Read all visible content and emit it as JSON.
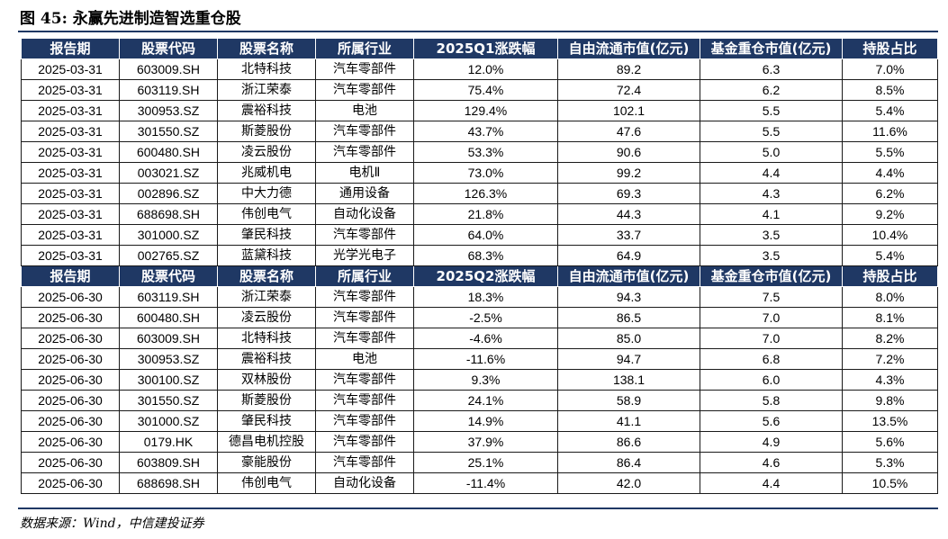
{
  "title": "图 45: 永赢先进制造智选重仓股",
  "source": "数据来源：Wind，中信建投证券",
  "sections": [
    {
      "headers": [
        "报告期",
        "股票代码",
        "股票名称",
        "所属行业",
        "2025Q1涨跌幅",
        "自由流通市值(亿元)",
        "基金重仓市值(亿元)",
        "持股占比"
      ],
      "rows": [
        [
          "2025-03-31",
          "603009.SH",
          "北特科技",
          "汽车零部件",
          "12.0%",
          "89.2",
          "6.3",
          "7.0%"
        ],
        [
          "2025-03-31",
          "603119.SH",
          "浙江荣泰",
          "汽车零部件",
          "75.4%",
          "72.4",
          "6.2",
          "8.5%"
        ],
        [
          "2025-03-31",
          "300953.SZ",
          "震裕科技",
          "电池",
          "129.4%",
          "102.1",
          "5.5",
          "5.4%"
        ],
        [
          "2025-03-31",
          "301550.SZ",
          "斯菱股份",
          "汽车零部件",
          "43.7%",
          "47.6",
          "5.5",
          "11.6%"
        ],
        [
          "2025-03-31",
          "600480.SH",
          "凌云股份",
          "汽车零部件",
          "53.3%",
          "90.6",
          "5.0",
          "5.5%"
        ],
        [
          "2025-03-31",
          "003021.SZ",
          "兆威机电",
          "电机Ⅱ",
          "73.0%",
          "99.2",
          "4.4",
          "4.4%"
        ],
        [
          "2025-03-31",
          "002896.SZ",
          "中大力德",
          "通用设备",
          "126.3%",
          "69.3",
          "4.3",
          "6.2%"
        ],
        [
          "2025-03-31",
          "688698.SH",
          "伟创电气",
          "自动化设备",
          "21.8%",
          "44.3",
          "4.1",
          "9.2%"
        ],
        [
          "2025-03-31",
          "301000.SZ",
          "肇民科技",
          "汽车零部件",
          "64.0%",
          "33.7",
          "3.5",
          "10.4%"
        ],
        [
          "2025-03-31",
          "002765.SZ",
          "蓝黛科技",
          "光学光电子",
          "68.3%",
          "64.9",
          "3.5",
          "5.4%"
        ]
      ]
    },
    {
      "headers": [
        "报告期",
        "股票代码",
        "股票名称",
        "所属行业",
        "2025Q2涨跌幅",
        "自由流通市值(亿元)",
        "基金重仓市值(亿元)",
        "持股占比"
      ],
      "rows": [
        [
          "2025-06-30",
          "603119.SH",
          "浙江荣泰",
          "汽车零部件",
          "18.3%",
          "94.3",
          "7.5",
          "8.0%"
        ],
        [
          "2025-06-30",
          "600480.SH",
          "凌云股份",
          "汽车零部件",
          "-2.5%",
          "86.5",
          "7.0",
          "8.1%"
        ],
        [
          "2025-06-30",
          "603009.SH",
          "北特科技",
          "汽车零部件",
          "-4.6%",
          "85.0",
          "7.0",
          "8.2%"
        ],
        [
          "2025-06-30",
          "300953.SZ",
          "震裕科技",
          "电池",
          "-11.6%",
          "94.7",
          "6.8",
          "7.2%"
        ],
        [
          "2025-06-30",
          "300100.SZ",
          "双林股份",
          "汽车零部件",
          "9.3%",
          "138.1",
          "6.0",
          "4.3%"
        ],
        [
          "2025-06-30",
          "301550.SZ",
          "斯菱股份",
          "汽车零部件",
          "24.1%",
          "58.9",
          "5.8",
          "9.8%"
        ],
        [
          "2025-06-30",
          "301000.SZ",
          "肇民科技",
          "汽车零部件",
          "14.9%",
          "41.1",
          "5.6",
          "13.5%"
        ],
        [
          "2025-06-30",
          "0179.HK",
          "德昌电机控股",
          "汽车零部件",
          "37.9%",
          "86.6",
          "4.9",
          "5.6%"
        ],
        [
          "2025-06-30",
          "603809.SH",
          "豪能股份",
          "汽车零部件",
          "25.1%",
          "86.4",
          "4.6",
          "5.3%"
        ],
        [
          "2025-06-30",
          "688698.SH",
          "伟创电气",
          "自动化设备",
          "-11.4%",
          "42.0",
          "4.4",
          "10.5%"
        ]
      ]
    }
  ]
}
